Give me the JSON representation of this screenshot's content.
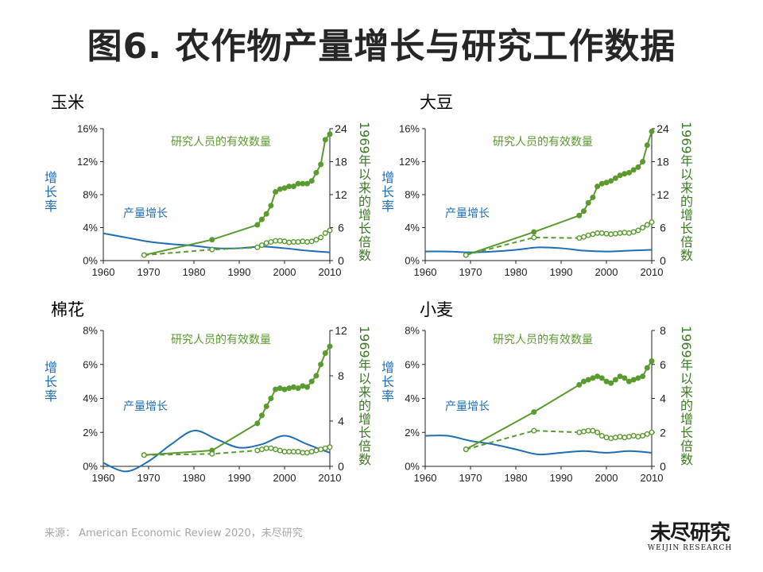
{
  "title": "图6. 农作物产量增长与研究工作数据",
  "source": "来源： American Economic Review 2020，未尽研究",
  "logo": {
    "cn": "未尽研究",
    "en": "WEIJIN RESEARCH"
  },
  "labels": {
    "growth_rate": "增长率",
    "multiple_prefix": "1969",
    "multiple_suffix": "年以来的增长倍数"
  },
  "colors": {
    "blue": "#1f6db3",
    "green": "#5a9a2f",
    "axis": "#222222"
  },
  "chart_data": [
    {
      "type": "line",
      "crop": "玉米",
      "x_ticks": [
        "1960",
        "1970",
        "1980",
        "1990",
        "2000",
        "2010"
      ],
      "xlim": [
        1960,
        2010
      ],
      "yleft_ticks": [
        "0%",
        "4%",
        "8%",
        "12%",
        "16%"
      ],
      "ylim_left": [
        0,
        16
      ],
      "yright_ticks": [
        "0",
        "6",
        "12",
        "18",
        "24"
      ],
      "ylim_right": [
        0,
        24
      ],
      "series": [
        {
          "name": "产量增长",
          "axis": "left",
          "style": "solid-curve",
          "points": [
            [
              1960,
              3.3
            ],
            [
              1965,
              2.8
            ],
            [
              1970,
              2.3
            ],
            [
              1975,
              2.0
            ],
            [
              1980,
              1.8
            ],
            [
              1985,
              1.5
            ],
            [
              1990,
              1.5
            ],
            [
              1995,
              1.7
            ],
            [
              2000,
              1.5
            ],
            [
              2005,
              1.2
            ],
            [
              2010,
              1.0
            ]
          ]
        },
        {
          "name": "研究人员的有效数量",
          "axis": "right",
          "style": "solid-markers",
          "points": [
            [
              1969,
              1
            ],
            [
              1984,
              3.8
            ],
            [
              1994,
              6.5
            ],
            [
              1995,
              7.5
            ],
            [
              1996,
              8.5
            ],
            [
              1997,
              10
            ],
            [
              1998,
              12.5
            ],
            [
              1999,
              13
            ],
            [
              2000,
              13.2
            ],
            [
              2001,
              13.5
            ],
            [
              2002,
              13.5
            ],
            [
              2003,
              14
            ],
            [
              2004,
              14
            ],
            [
              2005,
              14
            ],
            [
              2006,
              14.5
            ],
            [
              2007,
              16
            ],
            [
              2008,
              17.5
            ],
            [
              2009,
              22
            ],
            [
              2010,
              23
            ]
          ]
        },
        {
          "name": "研究人员的有效数量",
          "axis": "right",
          "style": "dashed-markers",
          "points": [
            [
              1969,
              1
            ],
            [
              1984,
              2
            ],
            [
              1994,
              2.4
            ],
            [
              1995,
              2.8
            ],
            [
              1996,
              3.2
            ],
            [
              1997,
              3.4
            ],
            [
              1998,
              3.6
            ],
            [
              1999,
              3.6
            ],
            [
              2000,
              3.5
            ],
            [
              2001,
              3.3
            ],
            [
              2002,
              3.4
            ],
            [
              2003,
              3.4
            ],
            [
              2004,
              3.5
            ],
            [
              2005,
              3.4
            ],
            [
              2006,
              3.5
            ],
            [
              2007,
              3.8
            ],
            [
              2008,
              4.2
            ],
            [
              2009,
              5
            ],
            [
              2010,
              5.5
            ]
          ]
        }
      ]
    },
    {
      "type": "line",
      "crop": "大豆",
      "x_ticks": [
        "1960",
        "1970",
        "1980",
        "1990",
        "2000",
        "2010"
      ],
      "xlim": [
        1960,
        2010
      ],
      "yleft_ticks": [
        "0%",
        "4%",
        "8%",
        "12%",
        "16%"
      ],
      "ylim_left": [
        0,
        16
      ],
      "yright_ticks": [
        "0",
        "6",
        "12",
        "18",
        "24"
      ],
      "ylim_right": [
        0,
        24
      ],
      "series": [
        {
          "name": "产量增长",
          "axis": "left",
          "style": "solid-curve",
          "points": [
            [
              1960,
              1.1
            ],
            [
              1965,
              1.1
            ],
            [
              1970,
              1.0
            ],
            [
              1975,
              1.1
            ],
            [
              1980,
              1.3
            ],
            [
              1985,
              1.6
            ],
            [
              1990,
              1.5
            ],
            [
              1995,
              1.2
            ],
            [
              2000,
              1.1
            ],
            [
              2005,
              1.2
            ],
            [
              2010,
              1.3
            ]
          ]
        },
        {
          "name": "研究人员的有效数量",
          "axis": "right",
          "style": "solid-markers",
          "points": [
            [
              1969,
              1
            ],
            [
              1984,
              5.2
            ],
            [
              1994,
              8.2
            ],
            [
              1995,
              9
            ],
            [
              1996,
              10.5
            ],
            [
              1997,
              11.5
            ],
            [
              1998,
              13.5
            ],
            [
              1999,
              14
            ],
            [
              2000,
              14.2
            ],
            [
              2001,
              14.5
            ],
            [
              2002,
              15
            ],
            [
              2003,
              15.5
            ],
            [
              2004,
              15.8
            ],
            [
              2005,
              16
            ],
            [
              2006,
              16.5
            ],
            [
              2007,
              17
            ],
            [
              2008,
              18
            ],
            [
              2009,
              21
            ],
            [
              2010,
              23.5
            ]
          ]
        },
        {
          "name": "研究人员的有效数量",
          "axis": "right",
          "style": "dashed-markers",
          "points": [
            [
              1969,
              1
            ],
            [
              1984,
              4.2
            ],
            [
              1994,
              4.1
            ],
            [
              1995,
              4.3
            ],
            [
              1996,
              4.6
            ],
            [
              1997,
              4.8
            ],
            [
              1998,
              5
            ],
            [
              1999,
              5
            ],
            [
              2000,
              4.9
            ],
            [
              2001,
              4.8
            ],
            [
              2002,
              4.9
            ],
            [
              2003,
              5
            ],
            [
              2004,
              5.1
            ],
            [
              2005,
              5
            ],
            [
              2006,
              5.2
            ],
            [
              2007,
              5.5
            ],
            [
              2008,
              6
            ],
            [
              2009,
              6.5
            ],
            [
              2010,
              7
            ]
          ]
        }
      ]
    },
    {
      "type": "line",
      "crop": "棉花",
      "x_ticks": [
        "1960",
        "1970",
        "1980",
        "1990",
        "2000",
        "2010"
      ],
      "xlim": [
        1960,
        2010
      ],
      "yleft_ticks": [
        "0%",
        "2%",
        "4%",
        "6%",
        "8%"
      ],
      "ylim_left": [
        0,
        8
      ],
      "yright_ticks": [
        "0",
        "4",
        "8",
        "12"
      ],
      "ylim_right": [
        0,
        12
      ],
      "series": [
        {
          "name": "产量增长",
          "axis": "left",
          "style": "solid-curve",
          "points": [
            [
              1960,
              0.2
            ],
            [
              1965,
              -0.3
            ],
            [
              1970,
              0.3
            ],
            [
              1975,
              1.3
            ],
            [
              1980,
              2.1
            ],
            [
              1985,
              1.6
            ],
            [
              1990,
              1.1
            ],
            [
              1995,
              1.3
            ],
            [
              2000,
              1.8
            ],
            [
              2005,
              1.3
            ],
            [
              2010,
              0.8
            ]
          ]
        },
        {
          "name": "研究人员的有效数量",
          "axis": "right",
          "style": "solid-markers",
          "points": [
            [
              1969,
              1
            ],
            [
              1984,
              1.4
            ],
            [
              1994,
              3.8
            ],
            [
              1995,
              4.5
            ],
            [
              1996,
              5.3
            ],
            [
              1997,
              6
            ],
            [
              1998,
              6.8
            ],
            [
              1999,
              6.9
            ],
            [
              2000,
              6.8
            ],
            [
              2001,
              6.9
            ],
            [
              2002,
              7
            ],
            [
              2003,
              6.9
            ],
            [
              2004,
              7.1
            ],
            [
              2005,
              7
            ],
            [
              2006,
              7.5
            ],
            [
              2007,
              8
            ],
            [
              2008,
              9
            ],
            [
              2009,
              10
            ],
            [
              2010,
              10.6
            ]
          ]
        },
        {
          "name": "研究人员的有效数量",
          "axis": "right",
          "style": "dashed-markers",
          "points": [
            [
              1969,
              1
            ],
            [
              1984,
              1.1
            ],
            [
              1994,
              1.4
            ],
            [
              1995,
              1.5
            ],
            [
              1996,
              1.6
            ],
            [
              1997,
              1.6
            ],
            [
              1998,
              1.5
            ],
            [
              1999,
              1.4
            ],
            [
              2000,
              1.3
            ],
            [
              2001,
              1.3
            ],
            [
              2002,
              1.3
            ],
            [
              2003,
              1.3
            ],
            [
              2004,
              1.2
            ],
            [
              2005,
              1.2
            ],
            [
              2006,
              1.3
            ],
            [
              2007,
              1.4
            ],
            [
              2008,
              1.5
            ],
            [
              2009,
              1.6
            ],
            [
              2010,
              1.7
            ]
          ]
        }
      ]
    },
    {
      "type": "line",
      "crop": "小麦",
      "x_ticks": [
        "1960",
        "1970",
        "1980",
        "1990",
        "2000",
        "2010"
      ],
      "xlim": [
        1960,
        2010
      ],
      "yleft_ticks": [
        "0%",
        "2%",
        "4%",
        "6%",
        "8%"
      ],
      "ylim_left": [
        0,
        8
      ],
      "yright_ticks": [
        "0",
        "2",
        "4",
        "6",
        "8"
      ],
      "ylim_right": [
        0,
        8
      ],
      "series": [
        {
          "name": "产量增长",
          "axis": "left",
          "style": "solid-curve",
          "points": [
            [
              1960,
              1.8
            ],
            [
              1965,
              1.8
            ],
            [
              1970,
              1.5
            ],
            [
              1975,
              1.3
            ],
            [
              1980,
              1.0
            ],
            [
              1985,
              0.7
            ],
            [
              1990,
              0.8
            ],
            [
              1995,
              0.9
            ],
            [
              2000,
              0.8
            ],
            [
              2005,
              0.9
            ],
            [
              2010,
              0.8
            ]
          ]
        },
        {
          "name": "研究人员的有效数量",
          "axis": "right",
          "style": "solid-markers",
          "points": [
            [
              1969,
              1
            ],
            [
              1984,
              3.2
            ],
            [
              1994,
              4.8
            ],
            [
              1995,
              5
            ],
            [
              1996,
              5.1
            ],
            [
              1997,
              5.2
            ],
            [
              1998,
              5.3
            ],
            [
              1999,
              5.2
            ],
            [
              2000,
              5
            ],
            [
              2001,
              4.9
            ],
            [
              2002,
              5.1
            ],
            [
              2003,
              5.3
            ],
            [
              2004,
              5.2
            ],
            [
              2005,
              5
            ],
            [
              2006,
              5.1
            ],
            [
              2007,
              5.2
            ],
            [
              2008,
              5.3
            ],
            [
              2009,
              5.8
            ],
            [
              2010,
              6.2
            ]
          ]
        },
        {
          "name": "研究人员的有效数量",
          "axis": "right",
          "style": "dashed-markers",
          "points": [
            [
              1969,
              1
            ],
            [
              1984,
              2.1
            ],
            [
              1994,
              2
            ],
            [
              1995,
              2.05
            ],
            [
              1996,
              2.1
            ],
            [
              1997,
              2.1
            ],
            [
              1998,
              2
            ],
            [
              1999,
              1.8
            ],
            [
              2000,
              1.7
            ],
            [
              2001,
              1.65
            ],
            [
              2002,
              1.7
            ],
            [
              2003,
              1.75
            ],
            [
              2004,
              1.7
            ],
            [
              2005,
              1.75
            ],
            [
              2006,
              1.8
            ],
            [
              2007,
              1.75
            ],
            [
              2008,
              1.8
            ],
            [
              2009,
              1.9
            ],
            [
              2010,
              2
            ]
          ]
        }
      ]
    }
  ]
}
